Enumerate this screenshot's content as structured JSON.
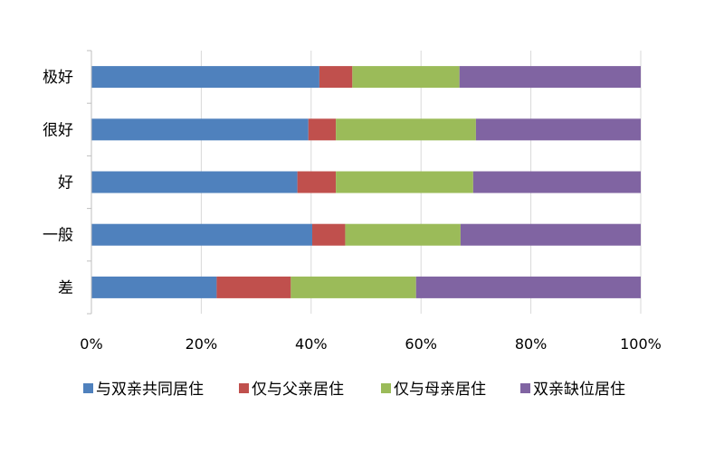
{
  "chart_data": {
    "type": "bar",
    "orientation": "horizontal",
    "stacked": "percent",
    "title": "",
    "xlabel": "",
    "ylabel": "",
    "categories": [
      "极好",
      "很好",
      "好",
      "一般",
      "差"
    ],
    "xlim": [
      0,
      100
    ],
    "x_ticks": [
      "0%",
      "20%",
      "40%",
      "60%",
      "80%",
      "100%"
    ],
    "grid": true,
    "legend_position": "bottom",
    "series": [
      {
        "name": "与双亲共同居住",
        "color": "#4F81BD",
        "values": [
          41.5,
          39.5,
          37.5,
          40.2,
          22.8
        ]
      },
      {
        "name": "仅与父亲居住",
        "color": "#C0504D",
        "values": [
          6.0,
          5.0,
          7.0,
          6.0,
          13.5
        ]
      },
      {
        "name": "仅与母亲居住",
        "color": "#9BBB59",
        "values": [
          19.5,
          25.5,
          25.0,
          21.0,
          22.8
        ]
      },
      {
        "name": "双亲缺位居住",
        "color": "#8064A2",
        "values": [
          33.0,
          30.0,
          30.5,
          32.8,
          40.9
        ]
      }
    ]
  }
}
